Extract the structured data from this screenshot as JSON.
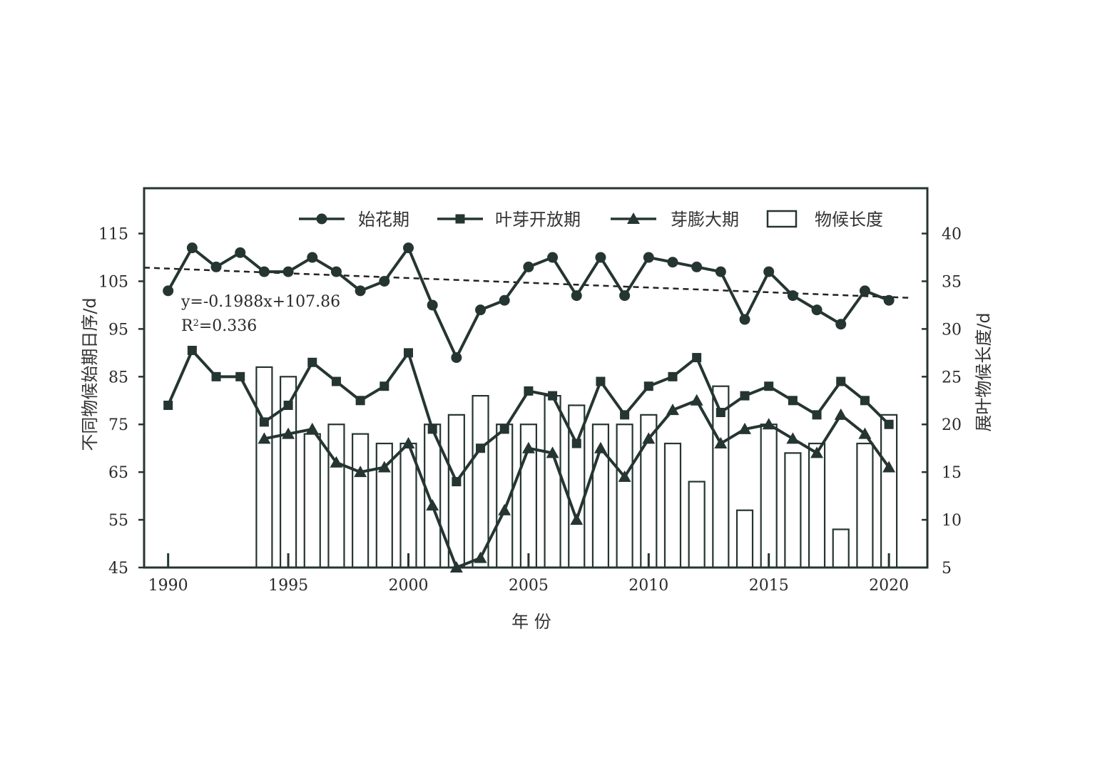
{
  "chart_data": {
    "type": "line",
    "xlabel": "年 份",
    "ylabel_left": "不同物候始期日序/d",
    "ylabel_right": "展叶物候长度/d",
    "x_ticks": [
      1990,
      1995,
      2000,
      2005,
      2010,
      2015,
      2020
    ],
    "y_left_ticks": [
      45,
      55,
      65,
      75,
      85,
      95,
      105,
      115
    ],
    "y_right_ticks": [
      5,
      10,
      15,
      20,
      25,
      30,
      35,
      40
    ],
    "xlim": [
      1989,
      2021.6
    ],
    "ylim_left": [
      45,
      124.5
    ],
    "ylim_right": [
      5,
      44.75
    ],
    "legend_position": "top-right",
    "colors": {
      "line": "#253532",
      "bar_edge": "#253532",
      "bar_fill": "#ffffff"
    },
    "series": [
      {
        "name": "始花期",
        "marker": "circle",
        "axis": "left",
        "x": [
          1990,
          1991,
          1992,
          1993,
          1994,
          1995,
          1996,
          1997,
          1998,
          1999,
          2000,
          2001,
          2002,
          2003,
          2004,
          2005,
          2006,
          2007,
          2008,
          2009,
          2010,
          2011,
          2012,
          2013,
          2014,
          2015,
          2016,
          2017,
          2018,
          2019,
          2020
        ],
        "values": [
          103,
          112,
          108,
          111,
          107,
          107,
          110,
          107,
          103,
          105,
          112,
          100,
          89,
          99,
          101,
          108,
          110,
          102,
          110,
          102,
          110,
          109,
          108,
          107,
          97,
          107,
          102,
          99,
          96,
          103,
          101
        ]
      },
      {
        "name": "叶芽开放期",
        "marker": "square",
        "axis": "left",
        "x": [
          1990,
          1991,
          1992,
          1993,
          1994,
          1995,
          1996,
          1997,
          1998,
          1999,
          2000,
          2001,
          2002,
          2003,
          2004,
          2005,
          2006,
          2007,
          2008,
          2009,
          2010,
          2011,
          2012,
          2013,
          2014,
          2015,
          2016,
          2017,
          2018,
          2019,
          2020
        ],
        "values": [
          79,
          90.5,
          85,
          85,
          75.5,
          79,
          88,
          84,
          80,
          83,
          90,
          74,
          63,
          70,
          74,
          82,
          81,
          71,
          84,
          77,
          83,
          85,
          89,
          77.5,
          81,
          83,
          80,
          77,
          84,
          80,
          75
        ]
      },
      {
        "name": "芽膨大期",
        "marker": "triangle",
        "axis": "left",
        "x": [
          1994,
          1995,
          1996,
          1997,
          1998,
          1999,
          2000,
          2001,
          2002,
          2003,
          2004,
          2005,
          2006,
          2007,
          2008,
          2009,
          2010,
          2011,
          2012,
          2013,
          2014,
          2015,
          2016,
          2017,
          2018,
          2019,
          2020
        ],
        "values": [
          72,
          73,
          74,
          67,
          65,
          66,
          71,
          58,
          45,
          47,
          57,
          70,
          69,
          55,
          70,
          64,
          72,
          78,
          80,
          71,
          74,
          75,
          72,
          69,
          77,
          73,
          66
        ]
      },
      {
        "name": "物候长度",
        "type": "bar",
        "axis": "right",
        "x": [
          1994,
          1995,
          1996,
          1997,
          1998,
          1999,
          2000,
          2001,
          2002,
          2003,
          2004,
          2005,
          2006,
          2007,
          2008,
          2009,
          2010,
          2011,
          2012,
          2013,
          2014,
          2015,
          2016,
          2017,
          2018,
          2019,
          2020
        ],
        "values": [
          26,
          25,
          19,
          20,
          19,
          18,
          18,
          20,
          21,
          23,
          20,
          20,
          23,
          22,
          20,
          20,
          21,
          18,
          14,
          24,
          11,
          20,
          17,
          18,
          9,
          18,
          21
        ]
      }
    ],
    "trendline": {
      "applies_to": "始花期",
      "slope": -0.1988,
      "intercept": 107.86,
      "x_origin": 1989,
      "equation": "y=-0.1988x+107.86",
      "r2_prefix": "R",
      "r2_sup": "2",
      "r2_value": "=0.336"
    }
  }
}
